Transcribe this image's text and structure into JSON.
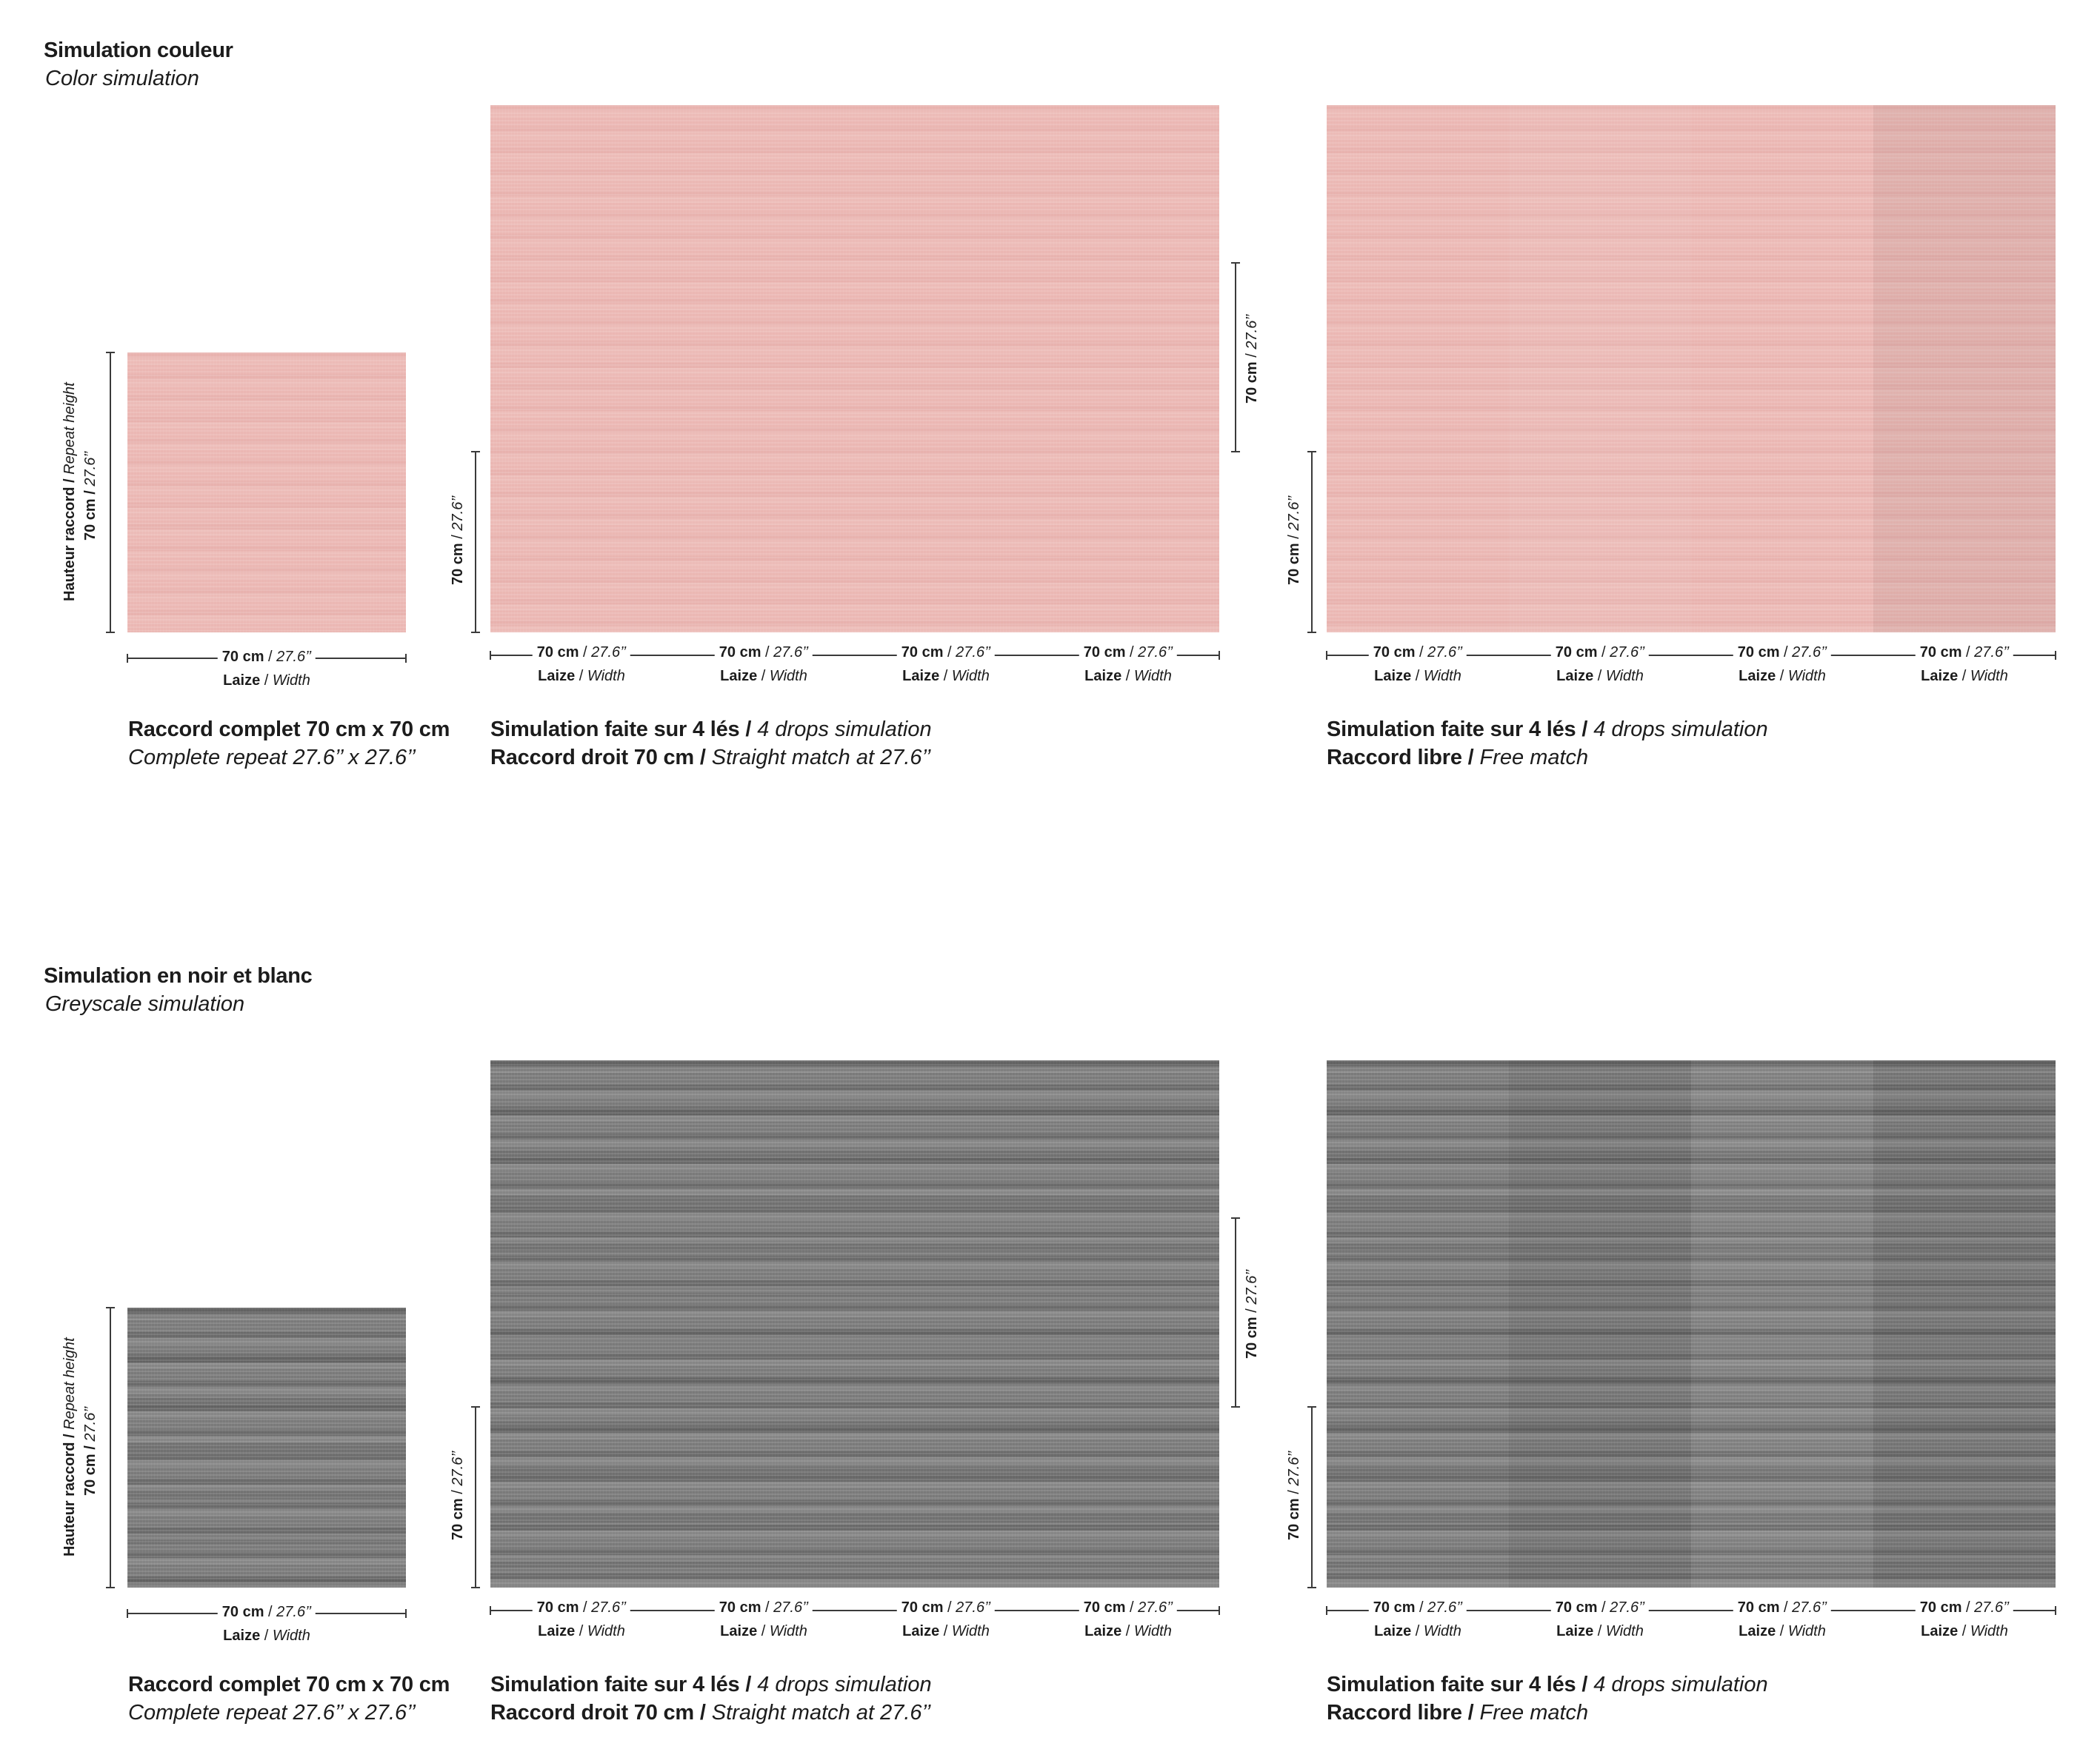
{
  "sections": [
    {
      "title_fr": "Simulation couleur",
      "title_en": "Color simulation",
      "swatch_color": "#ebb7b3"
    },
    {
      "title_fr": "Simulation en noir et blanc",
      "title_en": "Greyscale simulation",
      "swatch_color": "#7a7a7a"
    }
  ],
  "dimension": {
    "cm": "70 cm",
    "sep": " / ",
    "inch": "27.6’’",
    "width_fr": "Laize",
    "width_en": "Width",
    "height_fr": "Hauteur raccord",
    "height_en": "Repeat height"
  },
  "captions": {
    "repeat_fr": "Raccord complet 70 cm x 70 cm",
    "repeat_en": "Complete repeat 27.6’’ x 27.6’’",
    "sim_fr": "Simulation faite sur 4 lés /",
    "sim_en": "4 drops simulation",
    "straight_fr": "Raccord droit 70 cm /",
    "straight_en": "Straight match at 27.6’’",
    "free_fr": "Raccord libre /",
    "free_en": "Free match"
  }
}
